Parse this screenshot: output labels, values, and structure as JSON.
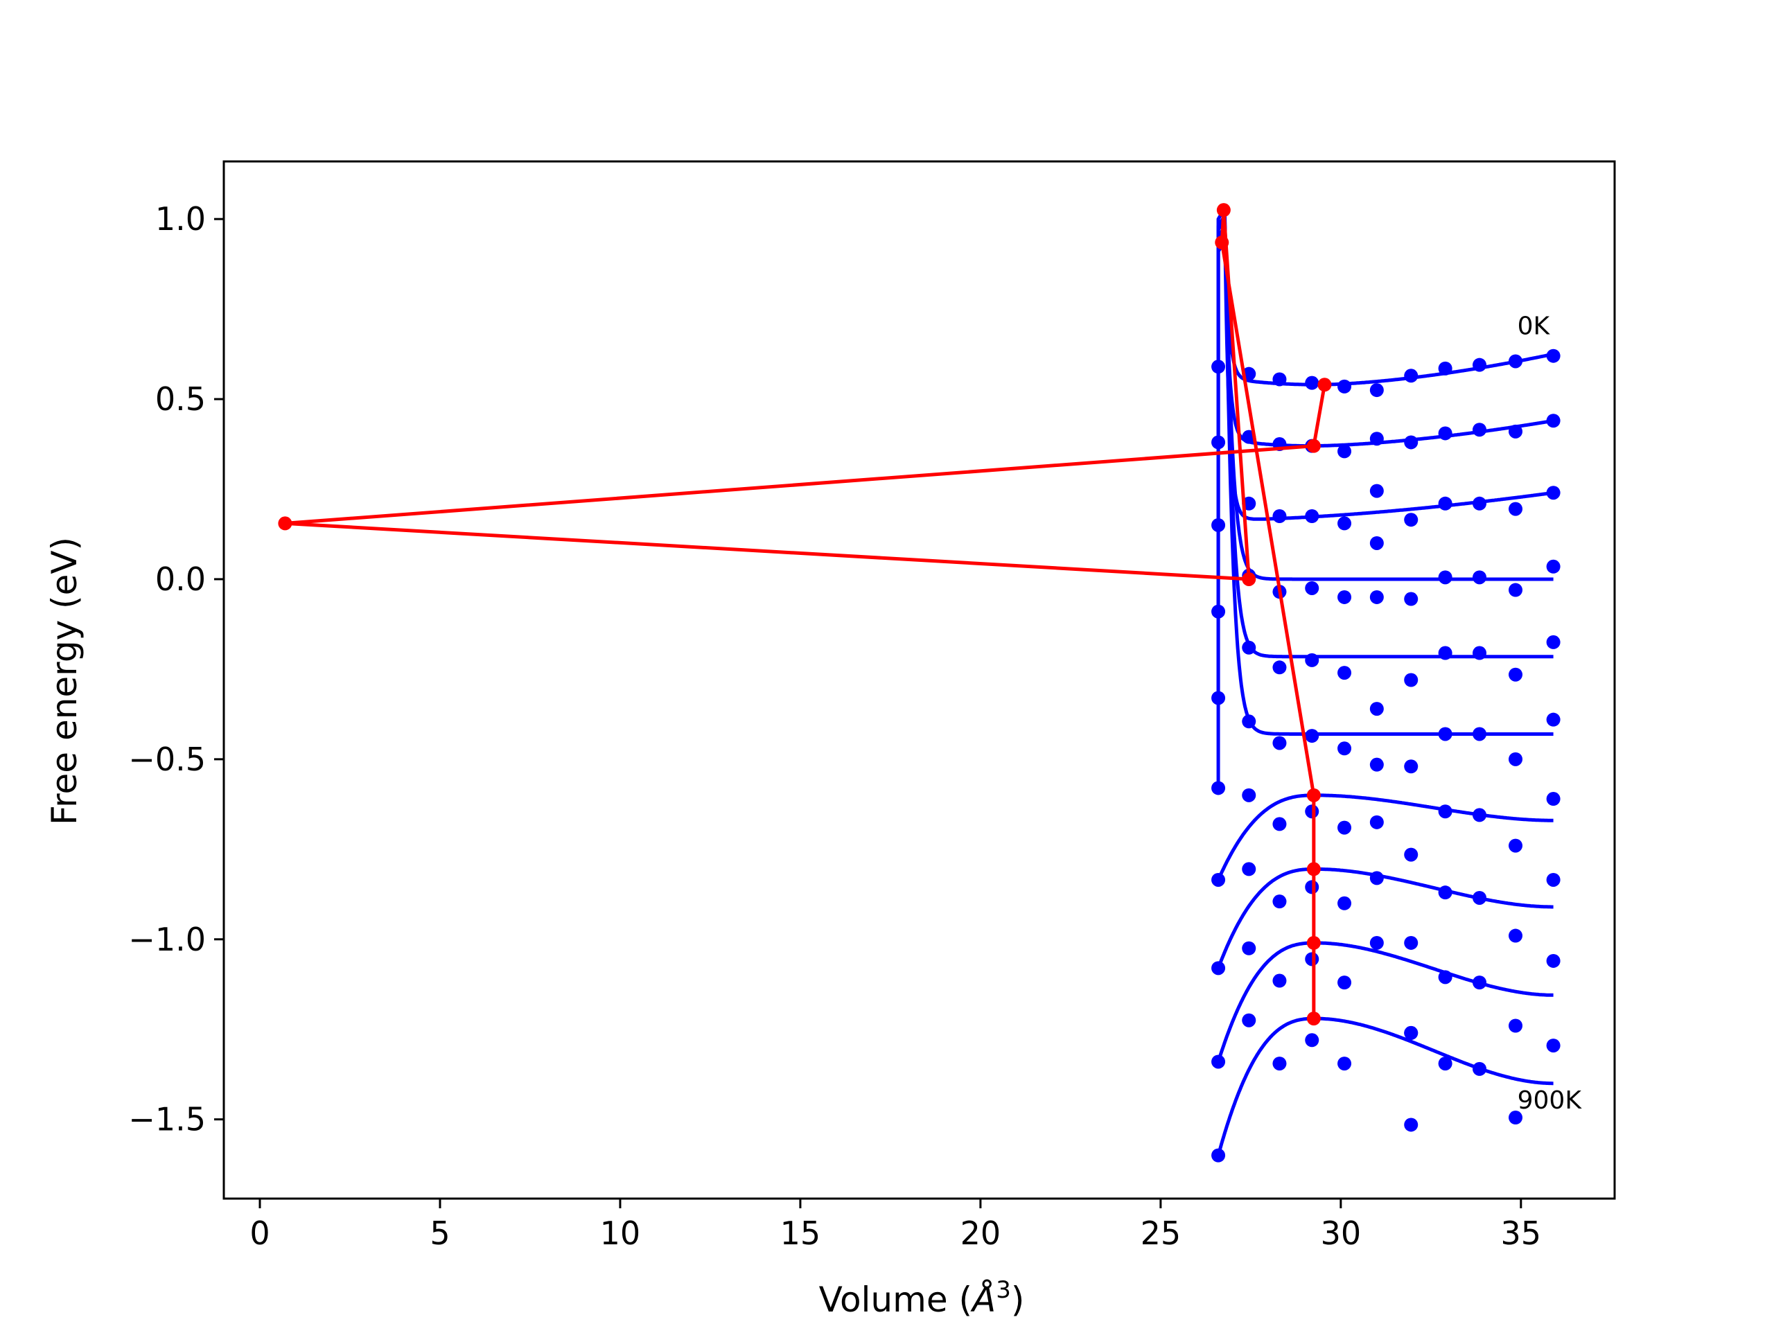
{
  "chart_data": {
    "type": "scatter",
    "title": "",
    "xlabel_main": "Volume (",
    "xlabel_unit": "Å",
    "xlabel_exp": "3",
    "xlabel_close": ")",
    "ylabel": "Free energy (eV)",
    "xlim": [
      -1.0,
      37.6
    ],
    "ylim": [
      -1.72,
      1.16
    ],
    "xticks": [
      0,
      5,
      10,
      15,
      20,
      25,
      30,
      35
    ],
    "yticks": [
      1.0,
      0.5,
      0.0,
      -0.5,
      -1.0,
      -1.5
    ],
    "xtick_labels": [
      "0",
      "5",
      "10",
      "15",
      "20",
      "25",
      "30",
      "35"
    ],
    "ytick_labels": [
      "1.0",
      "0.5",
      "0.0",
      "−0.5",
      "−1.0",
      "−1.5"
    ],
    "grid": false,
    "annotations": [
      {
        "text": "0K",
        "x": 34.9,
        "y": 0.68
      },
      {
        "text": "900K",
        "x": 34.9,
        "y": -1.47
      }
    ],
    "colors": {
      "points": "#0000ff",
      "fit": "#0000ff",
      "minima": "#ff0000"
    },
    "x": [
      26.6,
      27.45,
      28.3,
      29.2,
      30.1,
      31.0,
      31.95,
      32.9,
      33.85,
      34.85,
      35.9
    ],
    "series": [
      {
        "values": [
          0.59,
          0.57,
          0.555,
          0.545,
          0.535,
          0.525,
          0.565,
          0.585,
          0.595,
          0.605,
          0.62
        ],
        "fit": {
          "kind": "wells",
          "min_x": 29.4,
          "min_y": 0.54,
          "end_y": 0.625,
          "spike": 0.93
        }
      },
      {
        "values": [
          0.38,
          0.395,
          0.375,
          0.37,
          0.355,
          0.39,
          0.38,
          0.405,
          0.415,
          0.41,
          0.44
        ],
        "fit": {
          "kind": "wells",
          "min_x": 29.2,
          "min_y": 0.37,
          "end_y": 0.44,
          "spike": 0.95
        }
      },
      {
        "values": [
          0.15,
          0.21,
          0.175,
          0.175,
          0.155,
          0.1,
          0.165,
          0.21,
          0.21,
          0.195,
          0.24,
          0.245
        ],
        "x_override": [
          26.6,
          27.45,
          28.3,
          29.2,
          30.1,
          31.0,
          31.95,
          32.9,
          33.85,
          34.85,
          35.9,
          31.0
        ],
        "fit": {
          "kind": "wells",
          "min_x": 27.0,
          "min_y": 0.165,
          "end_y": 0.24,
          "spike": 0.97
        }
      },
      {
        "values": [
          -0.09,
          0.01,
          -0.035,
          -0.025,
          -0.05,
          -0.05,
          -0.055,
          0.005,
          0.005,
          -0.03,
          0.035
        ],
        "fit": {
          "kind": "decay",
          "y0": -0.09,
          "plateau": 0.0,
          "spike": 0.99
        }
      },
      {
        "values": [
          -0.33,
          -0.19,
          -0.245,
          -0.225,
          -0.26,
          -0.36,
          -0.28,
          -0.205,
          -0.205,
          -0.265,
          -0.175
        ],
        "fit": {
          "kind": "decay",
          "y0": -0.33,
          "plateau": -0.215,
          "spike": 1.0
        }
      },
      {
        "values": [
          -0.58,
          -0.395,
          -0.455,
          -0.435,
          -0.47,
          -0.515,
          -0.52,
          -0.43,
          -0.43,
          -0.5,
          -0.39
        ],
        "fit": {
          "kind": "decay",
          "y0": -0.58,
          "plateau": -0.43,
          "spike": 1.02
        }
      },
      {
        "values": [
          -0.835,
          -0.6,
          -0.68,
          -0.645,
          -0.69,
          -0.675,
          -0.765,
          -0.645,
          -0.655,
          -0.74,
          -0.61
        ],
        "fit": {
          "kind": "hump",
          "y0": -0.835,
          "peak_x": 29.3,
          "peak_y": -0.6,
          "end_y": -0.67
        }
      },
      {
        "values": [
          -1.08,
          -0.805,
          -0.895,
          -0.855,
          -0.9,
          -0.83,
          -1.01,
          -0.87,
          -0.885,
          -0.99,
          -0.835
        ],
        "fit": {
          "kind": "hump",
          "y0": -1.08,
          "peak_x": 29.3,
          "peak_y": -0.805,
          "end_y": -0.91
        }
      },
      {
        "values": [
          -1.34,
          -1.025,
          -1.115,
          -1.055,
          -1.12,
          -1.01,
          -1.26,
          -1.105,
          -1.12,
          -1.24,
          -1.06
        ],
        "fit": {
          "kind": "hump",
          "y0": -1.34,
          "peak_x": 29.3,
          "peak_y": -1.01,
          "end_y": -1.155
        }
      },
      {
        "values": [
          -1.6,
          -1.225,
          -1.345,
          -1.28,
          -1.345,
          -1.515,
          -1.26,
          -1.345,
          -1.36,
          -1.495,
          -1.295
        ],
        "x_override": [
          26.6,
          27.45,
          28.3,
          29.2,
          30.1,
          31.95,
          31.95,
          32.9,
          33.85,
          34.85,
          35.9
        ],
        "fit": {
          "kind": "hump",
          "y0": -1.6,
          "peak_x": 29.3,
          "peak_y": -1.22,
          "end_y": -1.4
        }
      }
    ],
    "minima_path": {
      "x": [
        29.55,
        29.25,
        0.7,
        27.45,
        26.75,
        26.7,
        29.25,
        29.25,
        29.25,
        29.25
      ],
      "y": [
        0.54,
        0.37,
        0.155,
        0.0,
        1.025,
        0.935,
        -0.6,
        -0.805,
        -1.01,
        -1.22
      ]
    }
  }
}
